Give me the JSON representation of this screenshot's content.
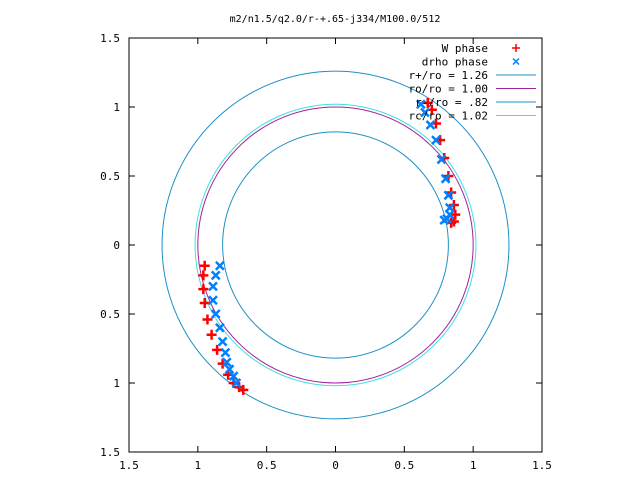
{
  "chart_data": {
    "type": "scatter",
    "title": "m2/n1.5/q2.0/r-+.65-j334/M100.0/512",
    "xlabel": "",
    "ylabel": "",
    "xlim": [
      -1.5,
      1.5
    ],
    "ylim": [
      -1.5,
      1.5
    ],
    "grid": false,
    "legend_position": "top-right",
    "xticks": [
      -1.5,
      -1,
      -0.5,
      0,
      0.5,
      1,
      1.5
    ],
    "yticks": [
      -1.5,
      -1,
      -0.5,
      0,
      0.5,
      1,
      1.5
    ],
    "xtick_labels": [
      "1.5",
      "1",
      "0.5",
      "0",
      "0.5",
      "1",
      "1.5"
    ],
    "ytick_labels": [
      "1.5",
      "1",
      "0.5",
      "0",
      "0.5",
      "1",
      "1.5"
    ],
    "circles": [
      {
        "name": "r+/ro = 1.26",
        "radius": 1.26,
        "color": "#1e90c8"
      },
      {
        "name": "ro/ro = 1.00",
        "radius": 1.0,
        "color": "#a020a0"
      },
      {
        "name": "r-/ro = .82",
        "radius": 0.82,
        "color": "#1e90c8"
      },
      {
        "name": "rc/ro = 1.02",
        "radius": 1.02,
        "color": "#40e0e0"
      }
    ],
    "series": [
      {
        "name": "W phase",
        "marker": "+",
        "color": "#ff0000",
        "x": [
          0.67,
          0.7,
          0.73,
          0.76,
          0.79,
          0.82,
          0.84,
          0.86,
          0.87,
          0.86,
          0.84,
          -0.95,
          -0.96,
          -0.96,
          -0.95,
          -0.93,
          -0.9,
          -0.86,
          -0.82,
          -0.78,
          -0.74,
          -0.7,
          -0.67
        ],
        "y": [
          1.03,
          0.98,
          0.88,
          0.76,
          0.63,
          0.5,
          0.38,
          0.29,
          0.22,
          0.17,
          0.16,
          -0.15,
          -0.22,
          -0.32,
          -0.42,
          -0.54,
          -0.65,
          -0.76,
          -0.86,
          -0.94,
          -1.0,
          -1.03,
          -1.05
        ]
      },
      {
        "name": "drho phase",
        "marker": "x",
        "color": "#0080ff",
        "x": [
          0.62,
          0.65,
          0.69,
          0.73,
          0.77,
          0.8,
          0.82,
          0.83,
          0.83,
          0.81,
          0.79,
          -0.84,
          -0.87,
          -0.89,
          -0.89,
          -0.87,
          -0.84,
          -0.82,
          -0.8,
          -0.79,
          -0.77,
          -0.74,
          -0.72
        ],
        "y": [
          1.02,
          0.96,
          0.87,
          0.76,
          0.62,
          0.48,
          0.36,
          0.27,
          0.22,
          0.19,
          0.18,
          -0.15,
          -0.22,
          -0.3,
          -0.4,
          -0.5,
          -0.6,
          -0.7,
          -0.78,
          -0.85,
          -0.9,
          -0.95,
          -1.0
        ]
      }
    ]
  }
}
